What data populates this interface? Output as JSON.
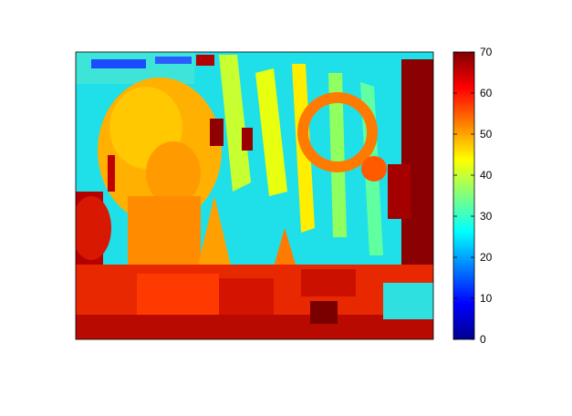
{
  "chart_data": {
    "type": "heatmap",
    "title": "",
    "xlabel": "",
    "ylabel": "",
    "colormap": "jet",
    "colorbar": {
      "range": [
        0,
        70
      ],
      "ticks": [
        0,
        10,
        20,
        30,
        40,
        50,
        60,
        70
      ],
      "tick_labels": [
        "0",
        "10",
        "20",
        "30",
        "40",
        "50",
        "60",
        "70"
      ],
      "placement": "right"
    },
    "image": {
      "description_free": true,
      "dominant_value_top_background": 30,
      "dominant_value_bottom": 65
    }
  }
}
